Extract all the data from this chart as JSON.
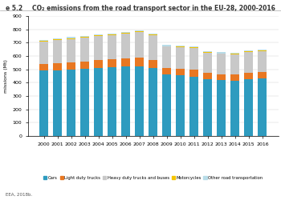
{
  "title": "CO₂ emissions from the road transport sector in the EU-28, 2000-2016",
  "figure_label": "e 5.2",
  "ylabel": "missions (Mt)",
  "source": "EEA, 2018b.",
  "years": [
    2000,
    2001,
    2002,
    2003,
    2004,
    2005,
    2006,
    2007,
    2008,
    2009,
    2010,
    2011,
    2012,
    2013,
    2014,
    2015,
    2016
  ],
  "cars": [
    490,
    495,
    500,
    505,
    510,
    515,
    520,
    525,
    510,
    460,
    455,
    445,
    425,
    420,
    415,
    425,
    430
  ],
  "light_duty": [
    50,
    52,
    54,
    56,
    58,
    60,
    62,
    65,
    62,
    50,
    52,
    53,
    47,
    45,
    46,
    49,
    50
  ],
  "heavy_duty": [
    170,
    172,
    175,
    177,
    180,
    182,
    185,
    190,
    182,
    160,
    162,
    163,
    155,
    152,
    152,
    156,
    158
  ],
  "motorcycles": [
    5,
    5,
    6,
    6,
    6,
    6,
    7,
    7,
    6,
    5,
    5,
    5,
    4,
    4,
    4,
    4,
    4
  ],
  "other": [
    8,
    8,
    8,
    8,
    8,
    8,
    8,
    8,
    8,
    7,
    7,
    7,
    7,
    7,
    7,
    7,
    7
  ],
  "colors": {
    "cars": "#2e9bbf",
    "light_duty": "#e87722",
    "heavy_duty": "#c8c8c8",
    "motorcycles": "#f5c400",
    "other": "#b8dce8"
  },
  "legend_labels": [
    "Cars",
    "Light duty trucks",
    "Heavy duty trucks and buses",
    "Motorcycles",
    "Other road transportation"
  ],
  "background_color": "#ffffff",
  "plot_bg_color": "#ffffff",
  "ylim": [
    0,
    900
  ],
  "bar_width": 0.65,
  "title_fontsize": 5.5,
  "label_fontsize": 4.5,
  "legend_fontsize": 3.8,
  "source_fontsize": 4.0
}
